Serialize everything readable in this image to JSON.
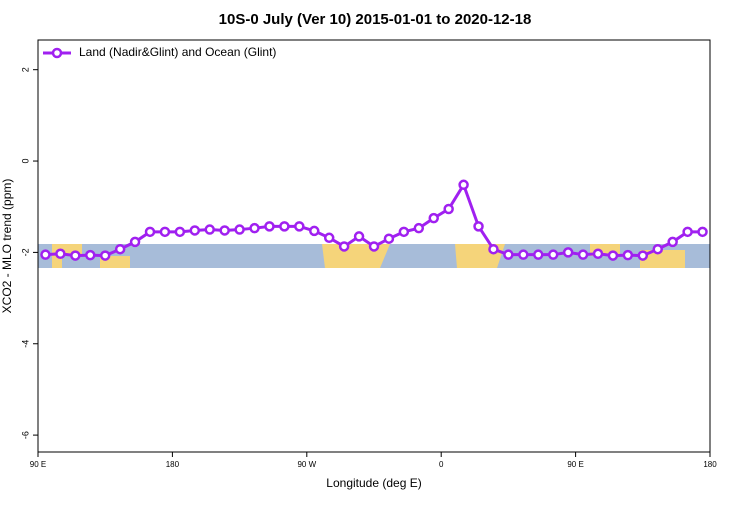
{
  "chart_data": {
    "type": "line",
    "title": "10S-0 July (Ver 10)   2015-01-01 to 2020-12-18",
    "x_label": "Longitude (deg E)",
    "y_label": "XCO2 - MLO trend (ppm)",
    "x": [
      95,
      105,
      115,
      125,
      135,
      145,
      155,
      165,
      175,
      185,
      195,
      205,
      215,
      225,
      235,
      245,
      255,
      265,
      275,
      285,
      295,
      305,
      315,
      325,
      335,
      345,
      355,
      365,
      375,
      385,
      395,
      405,
      415,
      425,
      435,
      445,
      455,
      465,
      475,
      485,
      495,
      505,
      515,
      525,
      535
    ],
    "series": [
      {
        "name": "Land (Nadir&Glint) and Ocean (Glint)",
        "color": "#a020f0",
        "values": [
          -2.05,
          -2.03,
          -2.07,
          -2.06,
          -2.07,
          -1.93,
          -1.77,
          -1.55,
          -1.55,
          -1.55,
          -1.52,
          -1.5,
          -1.52,
          -1.5,
          -1.47,
          -1.43,
          -1.43,
          -1.43,
          -1.53,
          -1.68,
          -1.87,
          -1.65,
          -1.87,
          -1.7,
          -1.55,
          -1.47,
          -1.25,
          -1.05,
          -0.52,
          -1.43,
          -1.93,
          -2.05,
          -2.05,
          -2.05,
          -2.05,
          -2.0,
          -2.05,
          -2.03,
          -2.07,
          -2.06,
          -2.07,
          -1.93,
          -1.77,
          -1.55,
          -1.55
        ]
      }
    ],
    "xlim": [
      90,
      540
    ],
    "xticks": [
      {
        "value": 90,
        "label": "90 E"
      },
      {
        "value": 180,
        "label": "180"
      },
      {
        "value": 270,
        "label": "90 W"
      },
      {
        "value": 360,
        "label": "0"
      },
      {
        "value": 450,
        "label": "90 E"
      },
      {
        "value": 540,
        "label": "180"
      }
    ],
    "ylim": [
      -6.37,
      2.65
    ],
    "yticks": [
      -6,
      -4,
      -2,
      0,
      2
    ],
    "legend": "top-left"
  }
}
